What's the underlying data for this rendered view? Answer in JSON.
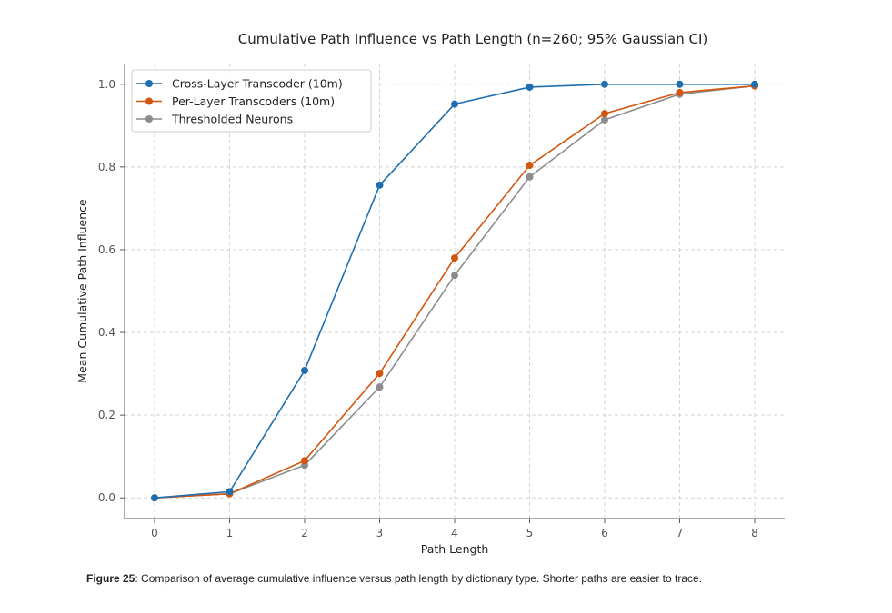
{
  "chart_data": {
    "type": "line",
    "title": "Cumulative Path Influence vs Path Length (n=260; 95% Gaussian CI)",
    "xlabel": "Path Length",
    "ylabel": "Mean Cumulative Path Influence",
    "x": [
      0,
      1,
      2,
      3,
      4,
      5,
      6,
      7,
      8
    ],
    "xticks": [
      "0",
      "1",
      "2",
      "3",
      "4",
      "5",
      "6",
      "7",
      "8"
    ],
    "yticks": [
      "0.0",
      "0.2",
      "0.4",
      "0.6",
      "0.8",
      "1.0"
    ],
    "ytick_values": [
      0,
      0.2,
      0.4,
      0.6,
      0.8,
      1.0
    ],
    "xlim": [
      -0.4,
      8.4
    ],
    "ylim": [
      -0.05,
      1.05
    ],
    "grid": true,
    "legend_position": "top-left",
    "series": [
      {
        "name": "Cross-Layer Transcoder (10m)",
        "color": "#1f6fb0",
        "values": [
          0,
          0.015,
          0.308,
          0.756,
          0.952,
          0.993,
          1.0,
          1.0,
          1.0
        ]
      },
      {
        "name": "Per-Layer Transcoders (10m)",
        "color": "#d2560f",
        "values": [
          0,
          0.01,
          0.09,
          0.301,
          0.58,
          0.804,
          0.929,
          0.98,
          0.996
        ]
      },
      {
        "name": "Thresholded Neurons",
        "color": "#8c8c8c",
        "values": [
          0,
          0.01,
          0.079,
          0.268,
          0.538,
          0.776,
          0.914,
          0.976,
          0.996
        ]
      }
    ]
  },
  "caption": {
    "label": "Figure 25",
    "text": ": Comparison of average cumulative influence versus path length by dictionary type. Shorter paths are easier to trace."
  }
}
